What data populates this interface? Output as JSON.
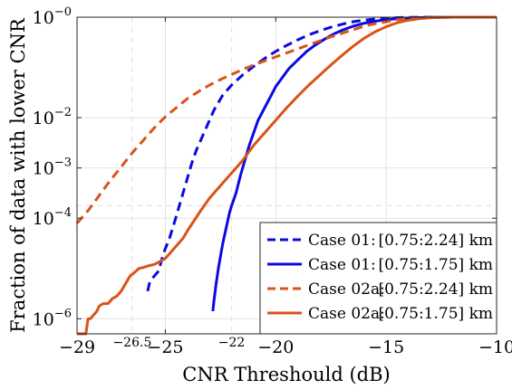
{
  "chart_data": {
    "type": "line",
    "xlabel": "CNR Threshould (dB)",
    "ylabel": "Fraction of data with lower CNR",
    "xlim": [
      -29,
      -10
    ],
    "ylim_log10": [
      -6.3,
      0
    ],
    "yscale": "log",
    "grid": true,
    "x_ticks": [
      {
        "value": -29,
        "label": "−29"
      },
      {
        "value": -25,
        "label": "−25"
      },
      {
        "value": -20,
        "label": "−20"
      },
      {
        "value": -15,
        "label": "−15"
      },
      {
        "value": -10,
        "label": "−10"
      }
    ],
    "x_extra_ticks": [
      {
        "value": -26.5,
        "label": "−26.5"
      },
      {
        "value": -22,
        "label": "−22"
      }
    ],
    "y_ticks": [
      {
        "log10": 0,
        "base": "10",
        "exp": "−0"
      },
      {
        "log10": -2,
        "base": "10",
        "exp": "−2"
      },
      {
        "log10": -3,
        "base": "10",
        "exp": "−3"
      },
      {
        "log10": -4,
        "base": "10",
        "exp": "−4"
      },
      {
        "log10": -6,
        "base": "10",
        "exp": "−6"
      }
    ],
    "reference_lines": {
      "x": [
        -26.5,
        -22
      ],
      "y_log10": [
        -3.75
      ]
    },
    "legend_position": "bottom-right",
    "series": [
      {
        "name": "Case 01:",
        "range": "[0.75:2.24] km",
        "color": "#0a0ae0",
        "dash": "dashed",
        "x": [
          -25.8,
          -25.7,
          -25.5,
          -25.3,
          -25.15,
          -25.0,
          -24.85,
          -24.6,
          -24.4,
          -24.2,
          -24.0,
          -23.8,
          -23.6,
          -23.4,
          -23.2,
          -23.0,
          -22.8,
          -22.6,
          -22.4,
          -22.2,
          -22.0,
          -21.5,
          -21.0,
          -20.5,
          -20.0,
          -19.5,
          -19.0,
          -18.5,
          -18.0,
          -17.5,
          -17.0,
          -16.5,
          -16.0,
          -15.5,
          -15.0,
          -14.5,
          -14.0,
          -13.5,
          -13.0,
          -12.5,
          -12.0,
          -11.5,
          -11.0,
          -10.5,
          -10.0
        ],
        "y_log10": [
          -5.45,
          -5.25,
          -5.15,
          -5.05,
          -4.8,
          -4.6,
          -4.45,
          -4.1,
          -3.8,
          -3.5,
          -3.2,
          -2.9,
          -2.65,
          -2.45,
          -2.25,
          -2.05,
          -1.85,
          -1.7,
          -1.55,
          -1.45,
          -1.35,
          -1.15,
          -0.98,
          -0.82,
          -0.68,
          -0.56,
          -0.45,
          -0.35,
          -0.27,
          -0.2,
          -0.14,
          -0.09,
          -0.06,
          -0.035,
          -0.02,
          -0.01,
          -0.005,
          -0.002,
          0,
          0,
          0,
          0,
          0,
          0,
          0
        ]
      },
      {
        "name": "Case 01:",
        "range": "[0.75:1.75] km",
        "color": "#0a0ae0",
        "dash": "solid",
        "x": [
          -22.85,
          -22.8,
          -22.7,
          -22.6,
          -22.5,
          -22.4,
          -22.3,
          -22.2,
          -22.1,
          -22.0,
          -21.8,
          -21.6,
          -21.4,
          -21.2,
          -21.0,
          -20.8,
          -20.5,
          -20.2,
          -20.0,
          -19.7,
          -19.4,
          -19.0,
          -18.6,
          -18.2,
          -17.8,
          -17.4,
          -17.0,
          -16.5,
          -16.0,
          -15.5,
          -15.0,
          -14.5,
          -14.0,
          -13.5,
          -13.0,
          -12.5,
          -12.0,
          -11.5,
          -11.0,
          -10.5,
          -10.0
        ],
        "y_log10": [
          -5.85,
          -5.65,
          -5.3,
          -5.0,
          -4.75,
          -4.5,
          -4.3,
          -4.1,
          -3.9,
          -3.75,
          -3.5,
          -3.15,
          -2.85,
          -2.55,
          -2.3,
          -2.05,
          -1.8,
          -1.55,
          -1.38,
          -1.2,
          -1.02,
          -0.85,
          -0.68,
          -0.55,
          -0.44,
          -0.34,
          -0.26,
          -0.18,
          -0.12,
          -0.08,
          -0.05,
          -0.03,
          -0.015,
          -0.008,
          -0.004,
          -0.002,
          0,
          0,
          0,
          0,
          0
        ]
      },
      {
        "name": "Case 02a:",
        "range": "[0.75:2.24] km",
        "color": "#d95319",
        "dash": "dashed",
        "x": [
          -29.0,
          -28.5,
          -28.0,
          -27.5,
          -27.0,
          -26.5,
          -26.0,
          -25.5,
          -25.0,
          -24.5,
          -24.0,
          -23.5,
          -23.0,
          -22.5,
          -22.0,
          -21.5,
          -21.0,
          -20.5,
          -20.0,
          -19.5,
          -19.0,
          -18.5,
          -18.0,
          -17.5,
          -17.0,
          -16.5,
          -16.0,
          -15.5,
          -15.0,
          -14.5,
          -14.0,
          -13.5,
          -13.0,
          -12.5,
          -12.0,
          -11.5,
          -11.0,
          -10.5,
          -10.0
        ],
        "y_log10": [
          -4.1,
          -3.85,
          -3.55,
          -3.25,
          -2.98,
          -2.7,
          -2.45,
          -2.2,
          -1.98,
          -1.8,
          -1.62,
          -1.48,
          -1.35,
          -1.24,
          -1.14,
          -1.04,
          -0.95,
          -0.87,
          -0.79,
          -0.71,
          -0.63,
          -0.55,
          -0.47,
          -0.39,
          -0.32,
          -0.25,
          -0.18,
          -0.13,
          -0.09,
          -0.05,
          -0.03,
          -0.015,
          -0.007,
          -0.003,
          -0.001,
          0,
          0,
          0,
          0
        ]
      },
      {
        "name": "Case 02a:",
        "range": "[0.75:1.75] km",
        "color": "#d95319",
        "dash": "solid",
        "x": [
          -29.0,
          -28.6,
          -28.5,
          -28.4,
          -28.1,
          -28.0,
          -27.9,
          -27.8,
          -27.6,
          -27.4,
          -27.2,
          -27.0,
          -26.8,
          -26.6,
          -26.4,
          -26.2,
          -26.0,
          -25.8,
          -25.5,
          -25.2,
          -25.0,
          -24.8,
          -24.6,
          -24.4,
          -24.2,
          -24.0,
          -23.7,
          -23.4,
          -23.0,
          -22.5,
          -22.0,
          -21.5,
          -21.0,
          -20.5,
          -20.0,
          -19.5,
          -19.0,
          -18.5,
          -18.0,
          -17.5,
          -17.0,
          -16.5,
          -16.0,
          -15.5,
          -15.0,
          -14.5,
          -14.0,
          -13.5,
          -13.0,
          -12.5,
          -12.0,
          -11.5,
          -11.0,
          -10.5,
          -10.0
        ],
        "y_log10": [
          -6.35,
          -6.35,
          -6.0,
          -6.0,
          -5.85,
          -5.75,
          -5.72,
          -5.7,
          -5.7,
          -5.6,
          -5.55,
          -5.45,
          -5.3,
          -5.15,
          -5.08,
          -5.0,
          -4.98,
          -4.95,
          -4.92,
          -4.85,
          -4.8,
          -4.7,
          -4.6,
          -4.5,
          -4.4,
          -4.25,
          -4.05,
          -3.85,
          -3.6,
          -3.35,
          -3.1,
          -2.85,
          -2.55,
          -2.3,
          -2.05,
          -1.8,
          -1.57,
          -1.35,
          -1.15,
          -0.95,
          -0.76,
          -0.58,
          -0.42,
          -0.29,
          -0.19,
          -0.11,
          -0.06,
          -0.03,
          -0.012,
          -0.005,
          0,
          0,
          0,
          0,
          0
        ]
      }
    ]
  }
}
